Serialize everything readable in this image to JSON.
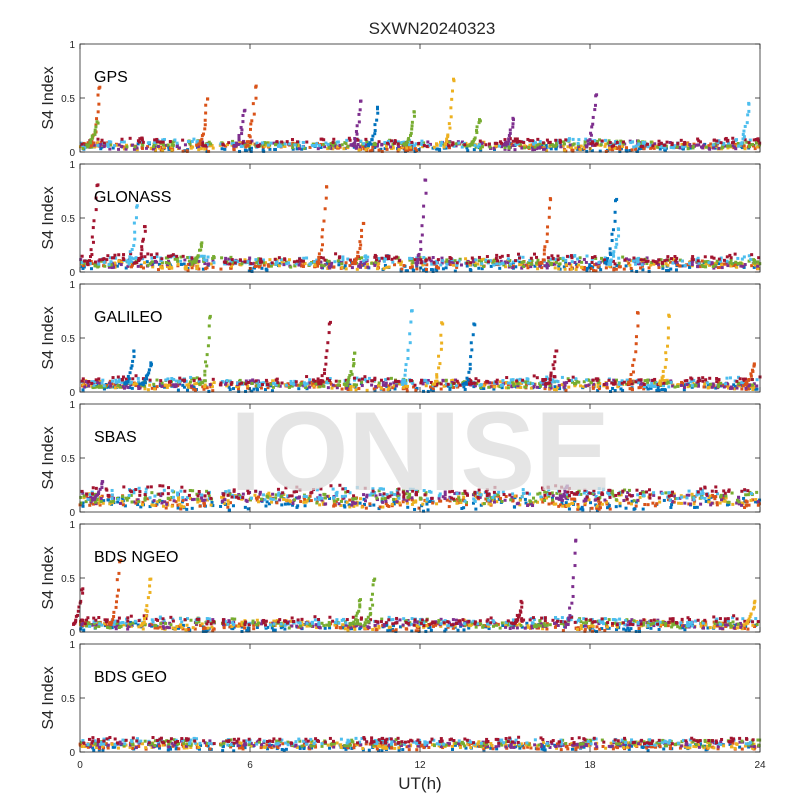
{
  "chart_data": {
    "type": "scatter",
    "title": "SXWN20240323",
    "xlabel": "UT(h)",
    "ylabel": "S4 Index",
    "xlim": [
      0,
      24
    ],
    "ylim": [
      0,
      1
    ],
    "x_ticks": [
      "0",
      "6",
      "12",
      "18",
      "24"
    ],
    "y_ticks": [
      "0",
      "0.5",
      "1"
    ],
    "watermark": "IONISE",
    "data_gap_hours": [
      4.75,
      4.95
    ],
    "series_colors": [
      "#0072BD",
      "#D95319",
      "#EDB120",
      "#7E2F8E",
      "#77AC30",
      "#4DBEEE",
      "#A2142F"
    ],
    "panels": [
      {
        "label": "GPS",
        "baseline_s4": 0.06,
        "spikes": [
          {
            "x": 0.7,
            "peak": 0.6,
            "color": 1
          },
          {
            "x": 0.6,
            "peak": 0.28,
            "color": 4
          },
          {
            "x": 4.5,
            "peak": 0.49,
            "color": 1
          },
          {
            "x": 6.2,
            "peak": 0.6,
            "color": 1
          },
          {
            "x": 5.8,
            "peak": 0.38,
            "color": 3
          },
          {
            "x": 9.9,
            "peak": 0.47,
            "color": 3
          },
          {
            "x": 10.5,
            "peak": 0.4,
            "color": 0
          },
          {
            "x": 11.8,
            "peak": 0.37,
            "color": 4
          },
          {
            "x": 13.2,
            "peak": 0.66,
            "color": 2
          },
          {
            "x": 14.1,
            "peak": 0.3,
            "color": 4
          },
          {
            "x": 15.3,
            "peak": 0.3,
            "color": 3
          },
          {
            "x": 18.2,
            "peak": 0.52,
            "color": 3
          },
          {
            "x": 23.6,
            "peak": 0.45,
            "color": 5
          }
        ]
      },
      {
        "label": "GLONASS",
        "baseline_s4": 0.08,
        "spikes": [
          {
            "x": 0.6,
            "peak": 0.8,
            "color": 6
          },
          {
            "x": 2.3,
            "peak": 0.42,
            "color": 6
          },
          {
            "x": 2.0,
            "peak": 0.6,
            "color": 5
          },
          {
            "x": 8.7,
            "peak": 0.79,
            "color": 1
          },
          {
            "x": 10.0,
            "peak": 0.45,
            "color": 1
          },
          {
            "x": 12.2,
            "peak": 0.85,
            "color": 3
          },
          {
            "x": 16.6,
            "peak": 0.68,
            "color": 1
          },
          {
            "x": 18.9,
            "peak": 0.66,
            "color": 0
          },
          {
            "x": 19.0,
            "peak": 0.4,
            "color": 5
          },
          {
            "x": 4.3,
            "peak": 0.27,
            "color": 4
          }
        ]
      },
      {
        "label": "GALILEO",
        "baseline_s4": 0.07,
        "spikes": [
          {
            "x": 4.6,
            "peak": 0.7,
            "color": 4
          },
          {
            "x": 1.9,
            "peak": 0.38,
            "color": 0
          },
          {
            "x": 2.5,
            "peak": 0.27,
            "color": 0
          },
          {
            "x": 8.8,
            "peak": 0.63,
            "color": 6
          },
          {
            "x": 11.7,
            "peak": 0.75,
            "color": 5
          },
          {
            "x": 12.8,
            "peak": 0.63,
            "color": 2
          },
          {
            "x": 13.9,
            "peak": 0.63,
            "color": 0
          },
          {
            "x": 16.8,
            "peak": 0.38,
            "color": 6
          },
          {
            "x": 19.7,
            "peak": 0.73,
            "color": 1
          },
          {
            "x": 20.8,
            "peak": 0.7,
            "color": 2
          },
          {
            "x": 9.7,
            "peak": 0.36,
            "color": 4
          },
          {
            "x": 23.8,
            "peak": 0.26,
            "color": 1
          }
        ]
      },
      {
        "label": "SBAS",
        "baseline_s4": 0.12,
        "spikes": [
          {
            "x": 0.8,
            "peak": 0.28,
            "color": 3
          },
          {
            "x": 17.2,
            "peak": 0.24,
            "color": 3
          }
        ]
      },
      {
        "label": "BDS NGEO",
        "baseline_s4": 0.07,
        "spikes": [
          {
            "x": 0.1,
            "peak": 0.4,
            "color": 6
          },
          {
            "x": 1.4,
            "peak": 0.65,
            "color": 1
          },
          {
            "x": 2.5,
            "peak": 0.49,
            "color": 2
          },
          {
            "x": 9.9,
            "peak": 0.3,
            "color": 4
          },
          {
            "x": 10.4,
            "peak": 0.49,
            "color": 4
          },
          {
            "x": 15.6,
            "peak": 0.27,
            "color": 6
          },
          {
            "x": 17.5,
            "peak": 0.85,
            "color": 3
          },
          {
            "x": 23.8,
            "peak": 0.27,
            "color": 2
          }
        ]
      },
      {
        "label": "BDS GEO",
        "baseline_s4": 0.07,
        "spikes": []
      }
    ]
  }
}
